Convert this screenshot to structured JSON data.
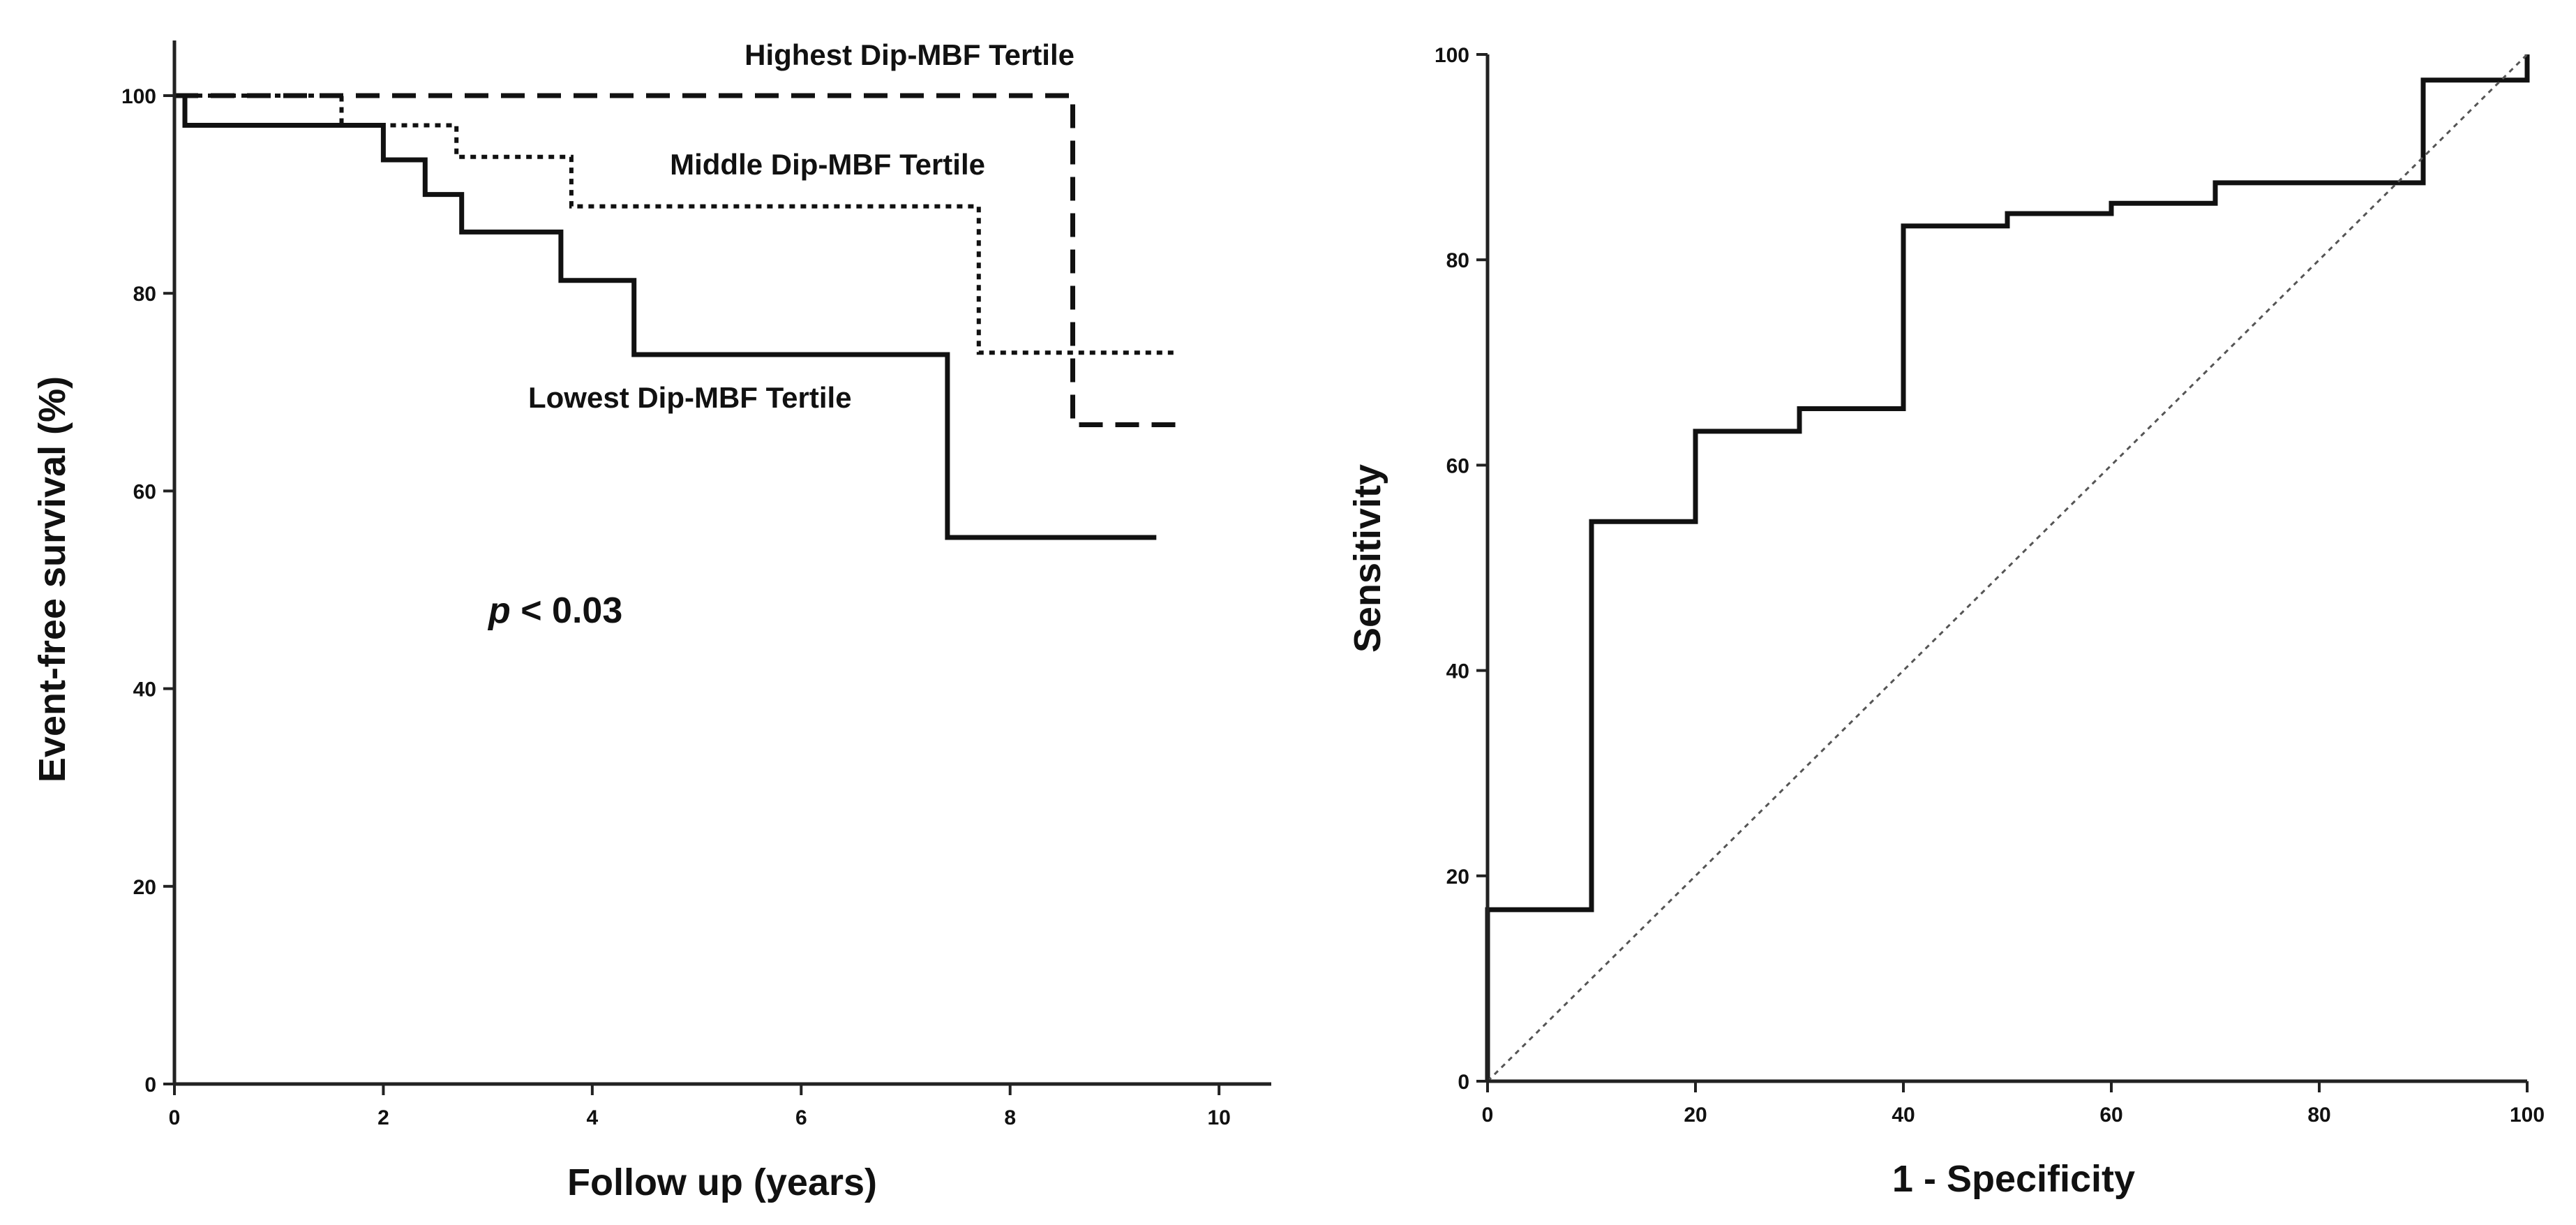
{
  "chart_data": [
    {
      "type": "line",
      "chart_kind": "kaplan-meier step",
      "title": "",
      "xlabel": "Follow up (years)",
      "ylabel": "Event-free survival (%)",
      "xlim": [
        0,
        10.5
      ],
      "ylim": [
        0,
        100
      ],
      "x_ticks": [
        0,
        2,
        4,
        6,
        8,
        10
      ],
      "y_ticks": [
        0,
        20,
        40,
        60,
        80,
        100
      ],
      "grid": false,
      "series": [
        {
          "name": "Highest Dip-MBF Tertile",
          "style": "dashed",
          "color": "#111111",
          "x": [
            0,
            8.6,
            8.6,
            9.6
          ],
          "y": [
            100,
            100,
            66.7,
            66.7
          ]
        },
        {
          "name": "Middle Dip-MBF Tertile",
          "style": "dotted",
          "color": "#111111",
          "x": [
            0,
            1.6,
            1.6,
            2.7,
            2.7,
            3.8,
            3.8,
            7.7,
            7.7,
            9.6
          ],
          "y": [
            100,
            100,
            97,
            97,
            93.8,
            93.8,
            88.8,
            88.8,
            74,
            74
          ]
        },
        {
          "name": "Lowest Dip-MBF Tertile",
          "style": "solid",
          "color": "#111111",
          "x": [
            0,
            0.1,
            0.1,
            2.0,
            2.0,
            2.4,
            2.4,
            2.75,
            2.75,
            3.7,
            3.7,
            4.4,
            4.4,
            7.4,
            7.4,
            9.4
          ],
          "y": [
            100,
            100,
            97,
            97,
            93.5,
            93.5,
            90,
            90,
            86.2,
            86.2,
            81.3,
            81.3,
            73.8,
            73.8,
            55.3,
            55.3
          ]
        }
      ],
      "annotations": {
        "p_symbol": "p",
        "p_text": " < 0.03"
      }
    },
    {
      "type": "line",
      "chart_kind": "roc step",
      "title": "",
      "xlabel": "1 - Specificity",
      "ylabel": "Sensitivity",
      "xlim": [
        0,
        100
      ],
      "ylim": [
        0,
        100
      ],
      "x_ticks": [
        0,
        20,
        40,
        60,
        80,
        100
      ],
      "y_ticks": [
        0,
        20,
        40,
        60,
        80,
        100
      ],
      "grid": false,
      "series": [
        {
          "name": "",
          "style": "solid",
          "color": "#111111",
          "x": [
            0,
            0,
            10,
            10,
            20,
            20,
            30,
            30,
            40,
            40,
            50,
            50,
            60,
            60,
            70,
            70,
            90,
            90,
            100,
            100
          ],
          "y": [
            0,
            16.7,
            16.7,
            54.5,
            54.5,
            63.3,
            63.3,
            65.5,
            65.5,
            83.3,
            83.3,
            84.5,
            84.5,
            85.5,
            85.5,
            87.5,
            87.5,
            97.5,
            97.5,
            100
          ]
        },
        {
          "name": "",
          "style": "dotted-reference",
          "color": "#555555",
          "x": [
            0,
            100
          ],
          "y": [
            0,
            100
          ]
        }
      ]
    }
  ]
}
